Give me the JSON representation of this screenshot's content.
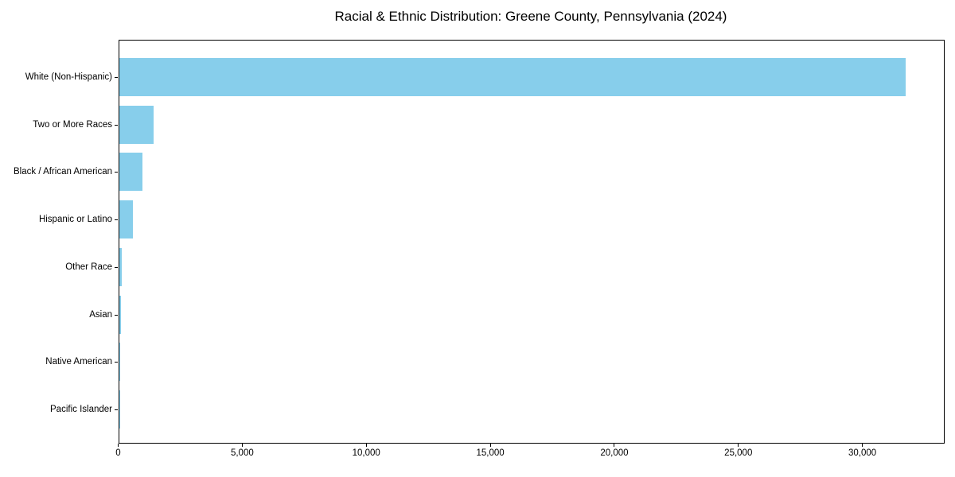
{
  "title": "Racial & Ethnic Distribution: Greene County, Pennsylvania (2024)",
  "colors": {
    "bar": "#87CEEB",
    "axis": "#000000",
    "text": "#000000",
    "background": "#ffffff"
  },
  "chart_data": {
    "type": "bar",
    "orientation": "horizontal",
    "title": "Racial & Ethnic Distribution: Greene County, Pennsylvania (2024)",
    "categories": [
      "White (Non-Hispanic)",
      "Two or More Races",
      "Black / African American",
      "Hispanic or Latino",
      "Other Race",
      "Asian",
      "Native American",
      "Pacific Islander"
    ],
    "values": [
      31700,
      1400,
      950,
      550,
      110,
      80,
      30,
      10
    ],
    "xlabel": "",
    "ylabel": "",
    "xlim": [
      0,
      33300
    ],
    "xticks": [
      0,
      5000,
      10000,
      15000,
      20000,
      25000,
      30000
    ],
    "xtick_labels": [
      "0",
      "5,000",
      "10,000",
      "15,000",
      "20,000",
      "25,000",
      "30,000"
    ],
    "bar_color": "#87CEEB",
    "grid": false,
    "legend": null
  }
}
